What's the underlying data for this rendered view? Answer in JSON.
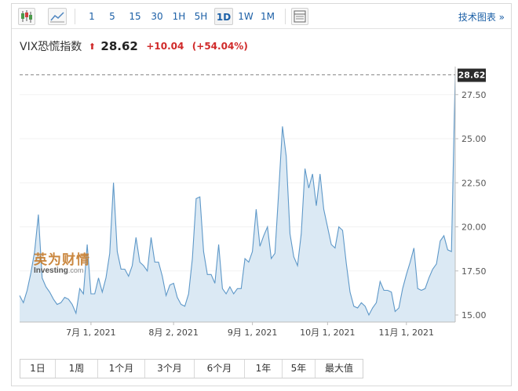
{
  "toolbar": {
    "timeframes": [
      "1",
      "5",
      "15",
      "30",
      "1H",
      "5H",
      "1D",
      "1W",
      "1M"
    ],
    "active_timeframe": "1D",
    "right_link": "技术图表 »"
  },
  "header": {
    "instrument": "VIX恐慌指数",
    "direction_icon": "up-arrow-icon",
    "arrow_glyph": "⬆",
    "price": "28.62",
    "change": "+10.04",
    "change_pct": "(+54.04%)",
    "up_color": "#d02a2a"
  },
  "watermark": {
    "cn": "英为财情",
    "en": "Investing",
    "en_suffix": ".com"
  },
  "range_buttons": [
    "1日",
    "1周",
    "1个月",
    "3个月",
    "6个月",
    "1年",
    "5年",
    "最大值"
  ],
  "chart_data": {
    "type": "area",
    "title": "",
    "xlabel": "",
    "ylabel": "",
    "line_color": "#5e98c8",
    "fill_color": "#dbe9f4",
    "ylim": [
      14.6,
      29.0
    ],
    "yticks": [
      15.0,
      17.5,
      20.0,
      22.5,
      25.0,
      27.5
    ],
    "ytick_labels": [
      "15.00",
      "17.50",
      "20.00",
      "22.50",
      "25.00",
      "27.50"
    ],
    "xticks": [
      "7月 1, 2021",
      "8月 2, 2021",
      "9月 1, 2021",
      "10月 1, 2021",
      "11月 1, 2021"
    ],
    "xtick_positions": [
      19,
      41,
      62,
      82,
      103
    ],
    "last_price_label": "28.62",
    "last_price": 28.62,
    "series": [
      {
        "values": [
          16.1,
          15.7,
          16.4,
          17.4,
          18.6,
          20.7,
          17.1,
          16.6,
          16.3,
          15.9,
          15.6,
          15.7,
          16.0,
          15.9,
          15.6,
          15.1,
          16.5,
          16.2,
          19.0,
          16.2,
          16.2,
          17.1,
          16.3,
          17.1,
          18.5,
          22.5,
          18.6,
          17.6,
          17.6,
          17.2,
          17.8,
          19.4,
          18.0,
          17.8,
          17.5,
          19.4,
          18.0,
          18.0,
          17.2,
          16.1,
          16.7,
          16.8,
          16.0,
          15.6,
          15.5,
          16.2,
          18.2,
          21.6,
          21.7,
          18.6,
          17.3,
          17.3,
          16.8,
          19.0,
          16.5,
          16.2,
          16.6,
          16.2,
          16.5,
          16.5,
          18.2,
          18.0,
          18.6,
          21.0,
          18.9,
          19.5,
          20.0,
          18.2,
          18.5,
          22.0,
          25.7,
          24.0,
          19.6,
          18.3,
          17.8,
          19.6,
          23.3,
          22.2,
          23.0,
          21.2,
          23.0,
          21.0,
          20.0,
          19.0,
          18.8,
          20.0,
          19.8,
          17.9,
          16.3,
          15.5,
          15.4,
          15.7,
          15.5,
          15.0,
          15.4,
          15.7,
          16.9,
          16.4,
          16.4,
          16.3,
          15.2,
          15.4,
          16.5,
          17.3,
          18.0,
          18.8,
          16.5,
          16.4,
          16.5,
          17.1,
          17.6,
          17.9,
          19.2,
          19.5,
          18.7,
          18.6,
          28.62
        ]
      }
    ]
  }
}
